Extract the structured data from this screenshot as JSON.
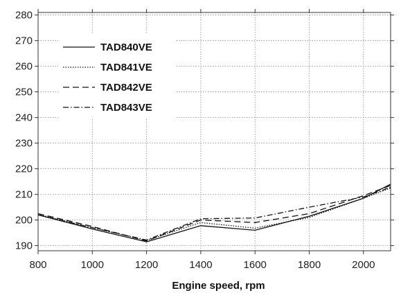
{
  "chart_data": {
    "type": "line",
    "title": "",
    "xlabel": "Engine speed, rpm",
    "ylabel": "",
    "xlim": [
      800,
      2100
    ],
    "ylim": [
      188,
      281
    ],
    "x_ticks": [
      800,
      1000,
      1200,
      1400,
      1600,
      1800,
      2000
    ],
    "y_ticks": [
      190,
      200,
      210,
      220,
      230,
      240,
      250,
      260,
      270,
      280
    ],
    "grid": true,
    "legend_position": "top-left",
    "series": [
      {
        "name": "TAD840VE",
        "dash": "solid",
        "x": [
          800,
          1000,
          1200,
          1400,
          1600,
          1800,
          2000,
          2100
        ],
        "y": [
          202,
          196.5,
          191.5,
          197.8,
          196,
          201.5,
          208.5,
          214
        ]
      },
      {
        "name": "TAD841VE",
        "dash": "dotted",
        "x": [
          800,
          1000,
          1200,
          1400,
          1600,
          1800,
          2000,
          2100
        ],
        "y": [
          202.2,
          197,
          192,
          199,
          196.8,
          201,
          208.5,
          212.5
        ]
      },
      {
        "name": "TAD842VE",
        "dash": "dashed",
        "x": [
          800,
          1000,
          1200,
          1400,
          1600,
          1800,
          2000,
          2100
        ],
        "y": [
          202.5,
          197.5,
          191.8,
          200,
          199,
          202.5,
          209.5,
          213.5
        ]
      },
      {
        "name": "TAD843VE",
        "dash": "dashdot",
        "x": [
          800,
          1000,
          1200,
          1400,
          1600,
          1800,
          2000,
          2100
        ],
        "y": [
          202,
          197,
          192.2,
          200.5,
          200.8,
          205,
          209,
          212.8
        ]
      }
    ]
  }
}
